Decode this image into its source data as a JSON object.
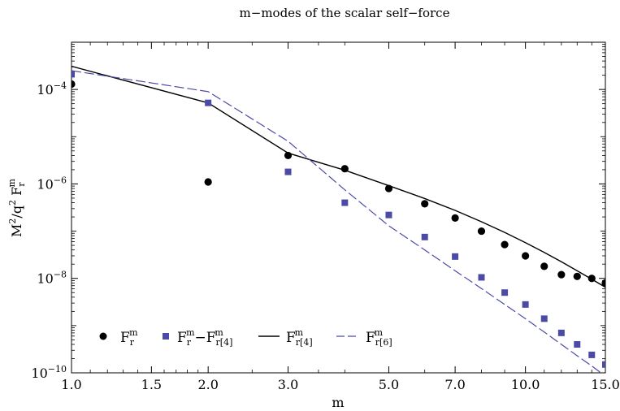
{
  "chart_data": {
    "type": "scatter",
    "title": "m−modes of the scalar self−force",
    "xlabel": "m",
    "ylabel": {
      "base": "M",
      "exp1": "2",
      "slash": "/q",
      "exp2": "2",
      "tail": " F",
      "sub": "r",
      "sup": "m"
    },
    "x_scale": "log",
    "y_scale": "log",
    "xlim": [
      1.0,
      15.0
    ],
    "ylim": [
      1e-10,
      0.001
    ],
    "x_ticks": [
      {
        "value": 1.0,
        "label": "1.0"
      },
      {
        "value": 1.5,
        "label": "1.5"
      },
      {
        "value": 2.0,
        "label": "2.0"
      },
      {
        "value": 3.0,
        "label": "3.0"
      },
      {
        "value": 5.0,
        "label": "5.0"
      },
      {
        "value": 7.0,
        "label": "7.0"
      },
      {
        "value": 10.0,
        "label": "10.0"
      },
      {
        "value": 15.0,
        "label": "15.0"
      }
    ],
    "y_ticks": [
      {
        "value": 1e-10,
        "base": "10",
        "exp": "−10"
      },
      {
        "value": 1e-08,
        "base": "10",
        "exp": "−8"
      },
      {
        "value": 1e-06,
        "base": "10",
        "exp": "−6"
      },
      {
        "value": 0.0001,
        "base": "10",
        "exp": "−4"
      }
    ],
    "legend_position": "bottom-left",
    "series": [
      {
        "key": "Fr",
        "style": "circle",
        "color": "#000000",
        "legend": {
          "main": "F",
          "sub": "r",
          "sup": "m"
        },
        "x": [
          1,
          2,
          3,
          4,
          5,
          6,
          7,
          8,
          9,
          10,
          11,
          12,
          13,
          14,
          15
        ],
        "y": [
          0.00013,
          1.1e-06,
          4e-06,
          2.1e-06,
          8e-07,
          3.8e-07,
          1.9e-07,
          1e-07,
          5.2e-08,
          3e-08,
          1.8e-08,
          1.2e-08,
          1.1e-08,
          1e-08,
          8e-09
        ]
      },
      {
        "key": "Fr_minus_Fr4",
        "style": "square",
        "color": "#4b4ba6",
        "legend": {
          "main": "F",
          "sub": "r",
          "sup": "m",
          "op": "−",
          "main2": "F",
          "sub2": "r[4]",
          "sup2": "m"
        },
        "x": [
          1,
          2,
          3,
          4,
          5,
          6,
          7,
          8,
          9,
          10,
          11,
          12,
          13,
          14,
          15
        ],
        "y": [
          0.00021,
          5.2e-05,
          1.8e-06,
          4e-07,
          2.2e-07,
          7.5e-08,
          2.9e-08,
          1.05e-08,
          5e-09,
          2.8e-09,
          1.4e-09,
          7e-10,
          4e-10,
          2.4e-10,
          1.5e-10
        ]
      },
      {
        "key": "Fr4",
        "style": "solid-line",
        "color": "#000000",
        "legend": {
          "main": "F",
          "sub": "r[4]",
          "sup": "m"
        },
        "x": [
          1,
          2,
          3,
          4,
          5,
          6,
          7,
          8,
          9,
          10,
          11,
          12,
          13,
          14,
          15
        ],
        "y": [
          0.00031,
          5.2e-05,
          4.5e-06,
          1.95e-06,
          9.2e-07,
          4.9e-07,
          2.75e-07,
          1.58e-07,
          9.4e-08,
          5.7e-08,
          3.55e-08,
          2.25e-08,
          1.45e-08,
          9.6e-09,
          6.5e-09
        ]
      },
      {
        "key": "Fr6",
        "style": "dashed-line",
        "color": "#4b4ba6",
        "legend": {
          "main": "F",
          "sub": "r[6]",
          "sup": "m"
        },
        "x": [
          1,
          2,
          3,
          4,
          5,
          6,
          7,
          8,
          9,
          10,
          11,
          12,
          13,
          14,
          15
        ],
        "y": [
          0.00025,
          9e-05,
          8e-06,
          7.5e-07,
          1.3e-07,
          4e-08,
          1.45e-08,
          6.1e-09,
          2.8e-09,
          1.4e-09,
          7.3e-10,
          4e-10,
          2.3e-10,
          1.4e-10,
          8.5e-11
        ]
      }
    ]
  }
}
